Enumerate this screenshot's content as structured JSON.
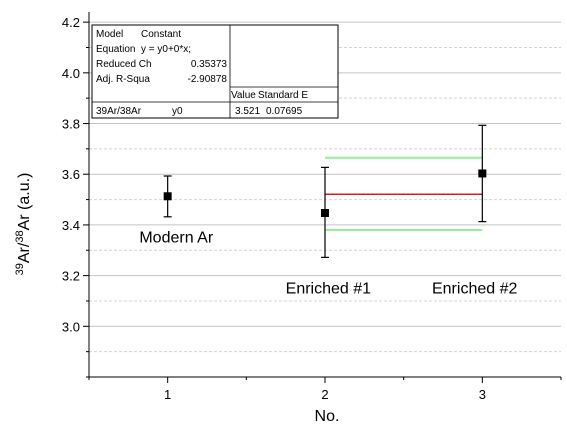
{
  "chart_data": {
    "type": "scatter",
    "xlabel": "No.",
    "ylabel_parts": {
      "sup1": "39",
      "base1": "Ar/",
      "sup2": "38",
      "base2": "Ar (a.u.)"
    },
    "xlim": [
      0.5,
      3.5
    ],
    "ylim": [
      2.8,
      4.24
    ],
    "x_ticks": [
      1,
      2,
      3
    ],
    "y_ticks": [
      3.0,
      3.2,
      3.4,
      3.6,
      3.8,
      4.0,
      4.2
    ],
    "y_minor_step": 0.1,
    "grid": {
      "major_y": true,
      "minor_y_dashed": true
    },
    "points": [
      {
        "label": "Modern Ar",
        "x": 1,
        "y": 3.513,
        "err_low": 3.432,
        "err_high": 3.593
      },
      {
        "label": "Enriched #1",
        "x": 2,
        "y": 3.447,
        "err_low": 3.272,
        "err_high": 3.627
      },
      {
        "label": "Enriched #2",
        "x": 3,
        "y": 3.603,
        "err_low": 3.413,
        "err_high": 3.793
      }
    ],
    "fit": {
      "x_range": [
        2,
        3
      ],
      "y": 3.521,
      "band": [
        3.38,
        3.665
      ],
      "line_color": "#d42020",
      "band_color": "#99ee99"
    },
    "annotations": [
      {
        "text": "Modern Ar",
        "x": 0.82,
        "y": 3.33
      },
      {
        "text": "Enriched #1",
        "x": 1.75,
        "y": 3.13
      },
      {
        "text": "Enriched #2",
        "x": 2.68,
        "y": 3.13
      }
    ]
  },
  "fit_table": {
    "rows": [
      [
        "Model",
        "Constant",
        ""
      ],
      [
        "Equation",
        "y = y0+0*x;",
        ""
      ],
      [
        "Reduced Ch",
        "0.35373",
        ""
      ],
      [
        "Adj. R-Squa",
        "-2.90878",
        ""
      ]
    ],
    "header_row": [
      "",
      "",
      "Value",
      "Standard E"
    ],
    "data_row": [
      "39Ar/38Ar",
      "y0",
      "3.521",
      "0.07695"
    ]
  }
}
